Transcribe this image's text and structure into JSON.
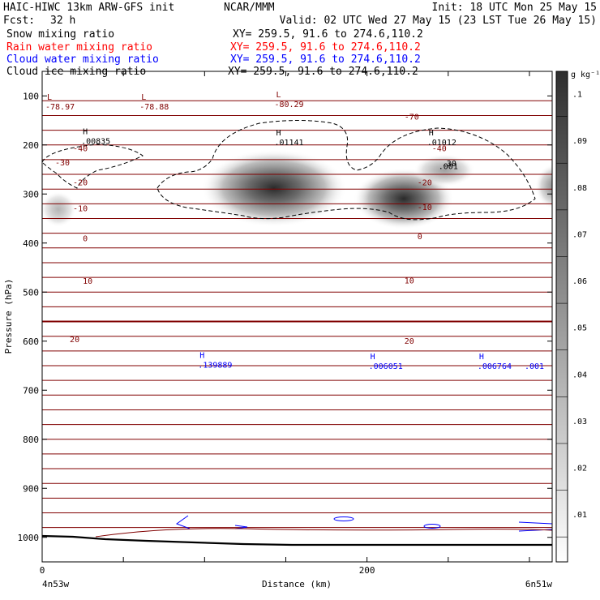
{
  "header": {
    "title_left": "HAIC-HIWC 13km ARW-GFS init",
    "org": "NCAR/MMM",
    "init": "Init: 18 UTC Mon 25 May 15",
    "fcst_label": "Fcst:",
    "fcst_value": "32 h",
    "valid": "Valid: 02 UTC Wed 27 May 15 (23 LST Tue 26 May 15)"
  },
  "fields": [
    {
      "name": "Snow mixing ratio",
      "xy": "XY= 259.5, 91.6 to 274.6,110.2",
      "color": "#000000"
    },
    {
      "name": "Rain water mixing ratio",
      "xy": "XY= 259.5, 91.6 to 274.6,110.2",
      "color": "#ff0000"
    },
    {
      "name": "Cloud water mixing ratio",
      "xy": "XY= 259.5, 91.6 to 274.6,110.2",
      "color": "#0000ff"
    },
    {
      "name": "Cloud ice mixing ratio",
      "xy": "XY= 259.5, 91.6 to 274.6,110.2",
      "color": "#000000"
    }
  ],
  "axes": {
    "ylabel": "Pressure (hPa)",
    "xlabel": "Distance (km)",
    "left_endpoint": "4n53w",
    "right_endpoint": "6n51w",
    "y_ticks": [
      "100",
      "200",
      "300",
      "400",
      "500",
      "600",
      "700",
      "800",
      "900",
      "1000"
    ],
    "x_ticks": [
      "0",
      "200"
    ]
  },
  "colorbar": {
    "units": "g kg⁻¹",
    "labels": [
      ".1",
      ".09",
      ".08",
      ".07",
      ".06",
      ".05",
      ".04",
      ".03",
      ".02",
      ".01"
    ]
  },
  "chart_data": {
    "type": "contour",
    "x_range_km": [
      0,
      314
    ],
    "y_range_hPa": [
      50,
      1050
    ],
    "temperature_contour_labels": [
      {
        "value": "-70",
        "x": 223,
        "y": 148
      },
      {
        "value": "-40",
        "x": 19,
        "y": 213
      },
      {
        "value": "-40",
        "x": 240,
        "y": 213
      },
      {
        "value": "-30",
        "x": 8,
        "y": 242
      },
      {
        "value": "-20",
        "x": 19,
        "y": 282
      },
      {
        "value": "-20",
        "x": 231,
        "y": 282
      },
      {
        "value": "-10",
        "x": 19,
        "y": 335
      },
      {
        "value": "-10",
        "x": 231,
        "y": 333
      },
      {
        "value": "0",
        "x": 25,
        "y": 396
      },
      {
        "value": "0",
        "x": 231,
        "y": 392
      },
      {
        "value": "10",
        "x": 25,
        "y": 483
      },
      {
        "value": "10",
        "x": 223,
        "y": 482
      },
      {
        "value": "20",
        "x": 17,
        "y": 602
      },
      {
        "value": "20",
        "x": 223,
        "y": 605
      }
    ],
    "extrema_markers": [
      {
        "letter": "L",
        "value": "-78.97",
        "x": 2,
        "y": 128,
        "color": "#800000"
      },
      {
        "letter": "L",
        "value": "-78.88",
        "x": 60,
        "y": 128,
        "color": "#800000"
      },
      {
        "letter": "L",
        "value": "-80.29",
        "x": 143,
        "y": 123,
        "color": "#800000"
      },
      {
        "letter": "H",
        "value": ".00835",
        "x": 24,
        "y": 198,
        "color": "#000000"
      },
      {
        "letter": "H",
        "value": ".01141",
        "x": 143,
        "y": 200,
        "color": "#000000"
      },
      {
        "letter": "H",
        "value": ".01012",
        "x": 237,
        "y": 200,
        "color": "#000000"
      },
      {
        "letter": "H",
        "value": ".139889",
        "x": 96,
        "y": 654,
        "color": "#0000ff"
      },
      {
        "letter": "H",
        "value": ".006051",
        "x": 201,
        "y": 657,
        "color": "#0000ff"
      },
      {
        "letter": "H",
        "value": ".006764",
        "x": 268,
        "y": 657,
        "color": "#0000ff"
      }
    ],
    "other_labels": [
      {
        "text": ".001",
        "x": 244,
        "y": 249,
        "color": "#000000"
      },
      {
        "text": ".30",
        "x": 246,
        "y": 243,
        "color": "#000000"
      },
      {
        "text": ".001",
        "x": 297,
        "y": 657,
        "color": "#0000ff"
      }
    ],
    "ice_maxima": [
      {
        "x_km": 145,
        "p_hPa": 300,
        "value": 0.01141
      },
      {
        "x_km": 220,
        "p_hPa": 305,
        "value": 0.01012
      },
      {
        "x_km": 5,
        "p_hPa": 320,
        "value": 0.00835
      }
    ]
  }
}
